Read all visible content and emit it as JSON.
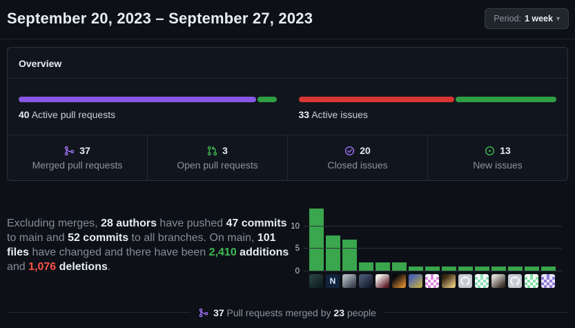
{
  "header": {
    "title": "September 20, 2023 – September 27, 2023",
    "period": {
      "prefix": "Period:",
      "value": "1 week",
      "caret": "▾"
    }
  },
  "overview": {
    "title": "Overview",
    "pull_requests": {
      "count": "40",
      "label": "Active pull requests",
      "segments": [
        {
          "name": "merged",
          "color": "#8957e5",
          "pct": 92.5
        },
        {
          "name": "open",
          "color": "#2ea043",
          "pct": 7.5
        }
      ]
    },
    "issues": {
      "count": "33",
      "label": "Active issues",
      "segments": [
        {
          "name": "closed",
          "color": "#da3633",
          "pct": 60.6
        },
        {
          "name": "new",
          "color": "#2ea043",
          "pct": 39.4
        }
      ]
    },
    "stats": [
      {
        "icon": "git-merge-icon",
        "color": "#a371f7",
        "value": "37",
        "label": "Merged pull requests"
      },
      {
        "icon": "git-pull-request-icon",
        "color": "#3fb950",
        "value": "3",
        "label": "Open pull requests"
      },
      {
        "icon": "issue-closed-icon",
        "color": "#a371f7",
        "value": "20",
        "label": "Closed issues"
      },
      {
        "icon": "issue-opened-icon",
        "color": "#3fb950",
        "value": "13",
        "label": "New issues"
      }
    ]
  },
  "summary": {
    "parts": [
      {
        "t": "Excluding merges, "
      },
      {
        "t": "28 authors",
        "s": "b"
      },
      {
        "t": " have pushed "
      },
      {
        "t": "47 commits",
        "s": "b"
      },
      {
        "t": " to main and "
      },
      {
        "t": "52 commits",
        "s": "b"
      },
      {
        "t": " to all branches. On main, "
      },
      {
        "t": "101 files",
        "s": "b"
      },
      {
        "t": " have changed and there have been "
      },
      {
        "t": "2,410",
        "s": "add"
      },
      {
        "t": " "
      },
      {
        "t": "additions",
        "s": "b"
      },
      {
        "t": " and "
      },
      {
        "t": "1,076",
        "s": "del"
      },
      {
        "t": " "
      },
      {
        "t": "deletions",
        "s": "b"
      },
      {
        "t": "."
      }
    ]
  },
  "chart_data": {
    "type": "bar",
    "description": "Commits per author, one bar per contributor avatar",
    "values": [
      14,
      8,
      7,
      2,
      2,
      2,
      1,
      1,
      1,
      1,
      1,
      1,
      1,
      1,
      1
    ],
    "yticks": [
      0,
      5,
      10
    ],
    "ylim": [
      0,
      15
    ],
    "bar_color": "#3aa64d",
    "grid_color": "#2a3038",
    "legend": "none",
    "avatars": [
      {
        "kind": "photo",
        "c1": "#27403c",
        "c2": "#101d22"
      },
      {
        "kind": "letter",
        "bg": "#10233c",
        "fg": "#d7e7f7",
        "char": "N"
      },
      {
        "kind": "photo",
        "c1": "#aab3bb",
        "c2": "#39424d"
      },
      {
        "kind": "photo",
        "c1": "#46546e",
        "c2": "#161c2e"
      },
      {
        "kind": "photo",
        "c1": "#f1ede9",
        "c2": "#5e1f28"
      },
      {
        "kind": "photo",
        "c1": "#07070c",
        "c2": "#d08430"
      },
      {
        "kind": "photo",
        "c1": "#4f64ae",
        "c2": "#b7a84e"
      },
      {
        "kind": "identicon",
        "bg": "#ffffff",
        "fg": "#dc8add"
      },
      {
        "kind": "photo",
        "c1": "#31230f",
        "c2": "#e3c27c"
      },
      {
        "kind": "octocat",
        "bg": "#c6cad0",
        "fg": "#eff1f3"
      },
      {
        "kind": "identicon",
        "bg": "#ffffff",
        "fg": "#8ce0b6"
      },
      {
        "kind": "photo",
        "c1": "#d8d4d0",
        "c2": "#3a2f28"
      },
      {
        "kind": "octocat",
        "bg": "#c6cad0",
        "fg": "#eff1f3"
      },
      {
        "kind": "identicon",
        "bg": "#ffffff",
        "fg": "#82dfa5"
      },
      {
        "kind": "identicon",
        "bg": "#e9e4f8",
        "fg": "#8f7ed8"
      }
    ]
  },
  "footer": {
    "icon": "git-merge-icon",
    "icon_color": "#a371f7",
    "parts": [
      {
        "t": "37",
        "s": "b"
      },
      {
        "t": " Pull requests merged by "
      },
      {
        "t": "23",
        "s": "b"
      },
      {
        "t": " people"
      }
    ]
  },
  "colors": {
    "page_bg": "#0d1117",
    "panel_bg": "#11161e",
    "border": "#2d333b",
    "text_primary": "#e6edf3",
    "text_secondary": "#8b949e",
    "accent_purple": "#a371f7",
    "accent_green": "#3fb950",
    "accent_red": "#f85149"
  }
}
